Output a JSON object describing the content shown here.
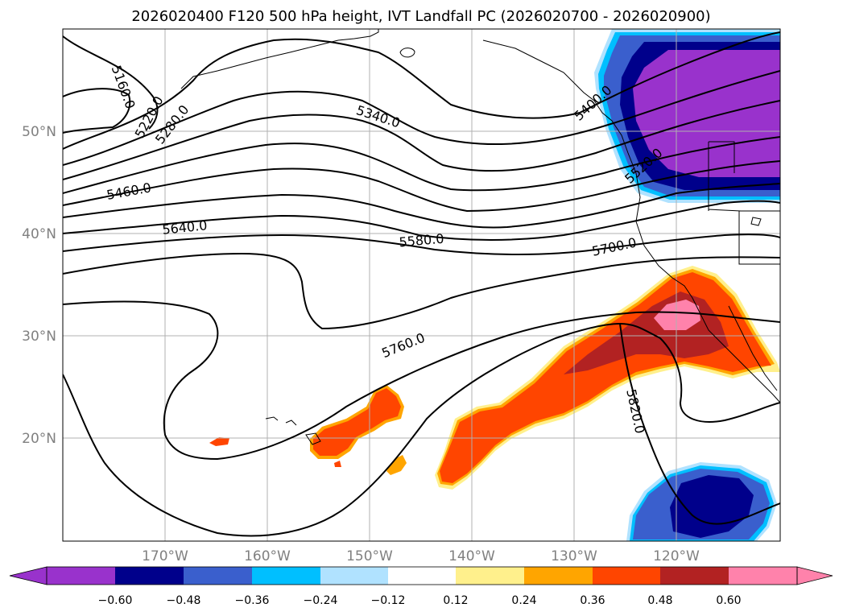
{
  "title": "2026020400 F120 500 hPa height, IVT Landfall PC (2026020700 - 2026020900)",
  "lat_labels": [
    "50°N",
    "40°N",
    "30°N",
    "20°N"
  ],
  "lon_labels": [
    "170°W",
    "160°W",
    "150°W",
    "140°W",
    "130°W",
    "120°W"
  ],
  "contour_labels": [
    "5160.0",
    "5220.0",
    "5280.0",
    "5340.0",
    "5400.0",
    "5460.0",
    "5520.0",
    "5580.0",
    "5640.0",
    "5700.0",
    "5760.0",
    "5820.0"
  ],
  "colorbar": {
    "ticks": [
      "−0.60",
      "−0.48",
      "−0.36",
      "−0.24",
      "−0.12",
      "0.12",
      "0.24",
      "0.36",
      "0.48",
      "0.60"
    ],
    "colors": [
      "#9932cc",
      "#00008b",
      "#3a5fcd",
      "#00bfff",
      "#b0e2ff",
      "#ffffff",
      "#fff08c",
      "#ffa500",
      "#ff4500",
      "#b22222",
      "#ff82ab",
      "#ff82ab"
    ]
  },
  "colors": {
    "purple": "#9932cc",
    "navy": "#00008b",
    "royal": "#3a5fcd",
    "sky": "#00bfff",
    "light_sky": "#b0e2ff",
    "yellow": "#fff08c",
    "orange": "#ffa500",
    "red_orange": "#ff4500",
    "firebrick": "#b22222",
    "pink": "#ff82ab"
  }
}
